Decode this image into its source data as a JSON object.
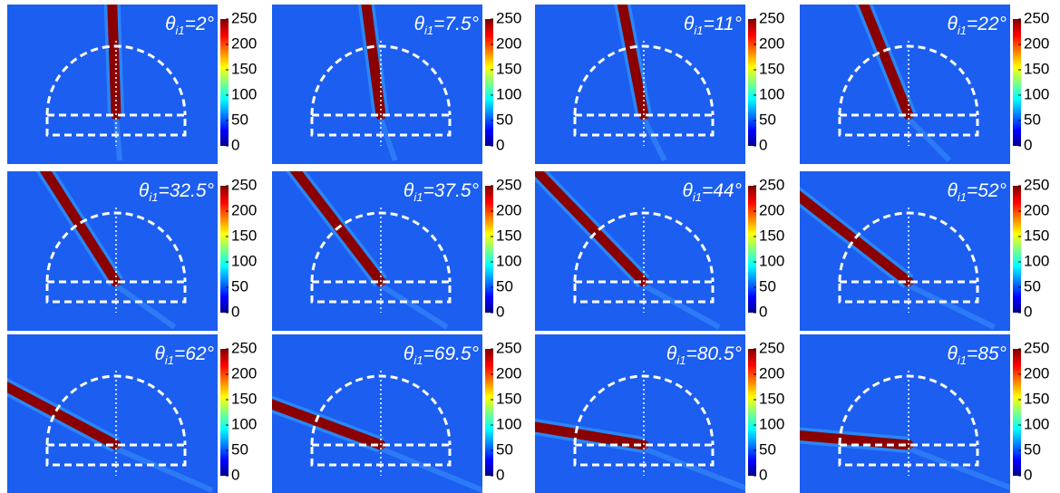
{
  "panels": [
    {
      "label": {
        "symbol": "θ",
        "subscript": "i1",
        "text": "=2°"
      }
    },
    {
      "label": {
        "symbol": "θ",
        "subscript": "i1",
        "text": "=7.5°"
      }
    },
    {
      "label": {
        "symbol": "θ",
        "subscript": "i1",
        "text": "=11°"
      }
    },
    {
      "label": {
        "symbol": "θ",
        "subscript": "i1",
        "text": "=22°"
      }
    },
    {
      "label": {
        "symbol": "θ",
        "subscript": "i1",
        "text": "=32.5°"
      }
    },
    {
      "label": {
        "symbol": "θ",
        "subscript": "i1",
        "text": "=37.5°"
      }
    },
    {
      "label": {
        "symbol": "θ",
        "subscript": "i1",
        "text": "=44°"
      }
    },
    {
      "label": {
        "symbol": "θ",
        "subscript": "i1",
        "text": "=52°"
      }
    },
    {
      "label": {
        "symbol": "θ",
        "subscript": "i1",
        "text": "=62°"
      }
    },
    {
      "label": {
        "symbol": "θ",
        "subscript": "i1",
        "text": "=69.5°"
      }
    },
    {
      "label": {
        "symbol": "θ",
        "subscript": "i1",
        "text": "=80.5°"
      }
    },
    {
      "label": {
        "symbol": "θ",
        "subscript": "i1",
        "text": "=85°"
      }
    }
  ],
  "colorbar": {
    "ticks": [
      0,
      50,
      100,
      150,
      200,
      250
    ]
  }
}
